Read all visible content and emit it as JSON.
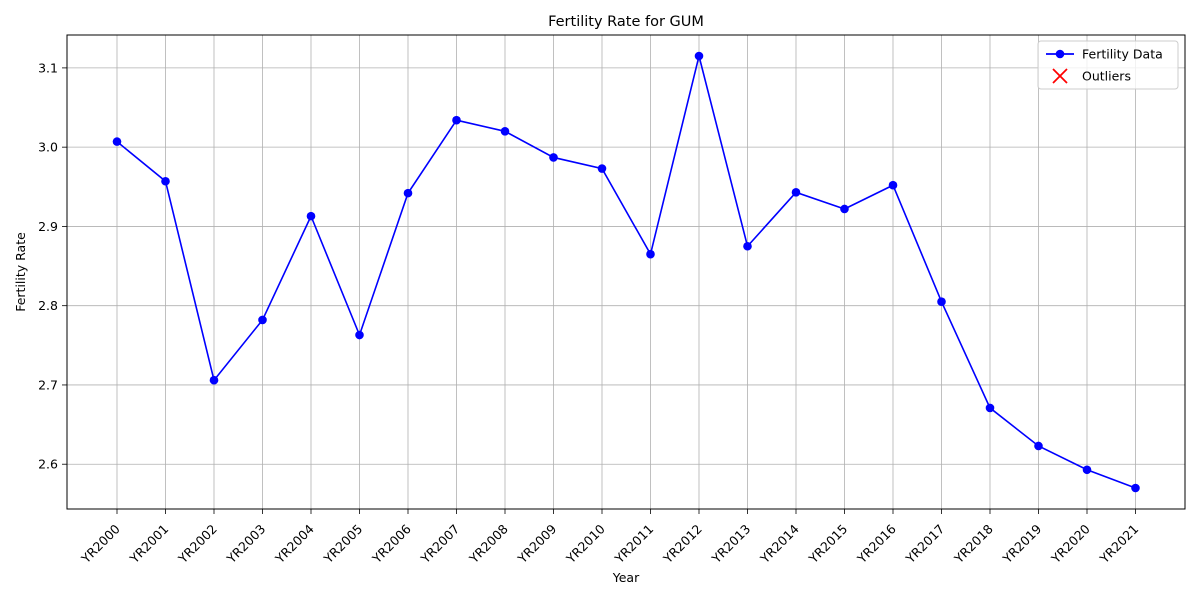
{
  "chart_data": {
    "type": "line",
    "title": "Fertility Rate for GUM",
    "xlabel": "Year",
    "ylabel": "Fertility Rate",
    "categories": [
      "YR2000",
      "YR2001",
      "YR2002",
      "YR2003",
      "YR2004",
      "YR2005",
      "YR2006",
      "YR2007",
      "YR2008",
      "YR2009",
      "YR2010",
      "YR2011",
      "YR2012",
      "YR2013",
      "YR2014",
      "YR2015",
      "YR2016",
      "YR2017",
      "YR2018",
      "YR2019",
      "YR2020",
      "YR2021"
    ],
    "series": [
      {
        "name": "Fertility Data",
        "color": "#0000ff",
        "marker": "circle",
        "values": [
          3.007,
          2.957,
          2.706,
          2.782,
          2.913,
          2.763,
          2.942,
          3.034,
          3.02,
          2.987,
          2.973,
          2.865,
          3.115,
          2.875,
          2.943,
          2.922,
          2.952,
          2.805,
          2.671,
          2.623,
          2.593,
          2.57
        ]
      }
    ],
    "outliers": {
      "name": "Outliers",
      "color": "#ff0000",
      "marker": "x",
      "points": []
    },
    "ylim": [
      2.5435,
      3.1415
    ],
    "yticks": [
      2.6,
      2.7,
      2.8,
      2.9,
      3.0,
      3.1
    ],
    "ytick_labels": [
      "2.6",
      "2.7",
      "2.8",
      "2.9",
      "3.0",
      "3.1"
    ],
    "grid": true,
    "legend_position": "top-right"
  }
}
